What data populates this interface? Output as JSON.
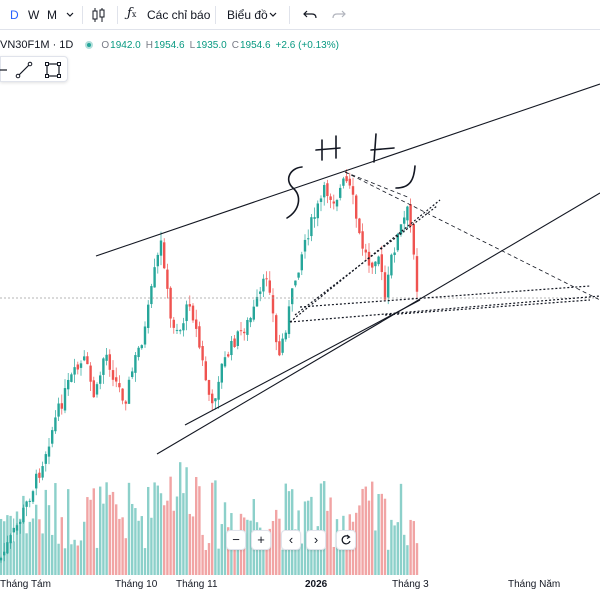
{
  "toolbar": {
    "timeframes": [
      "D",
      "W",
      "M"
    ],
    "active_timeframe": "D",
    "indicators_label": "Các chỉ báo",
    "layout_label": "Biểu đồ"
  },
  "legend": {
    "symbol": "VN30F1M · 1D",
    "open_label": "O",
    "open": "1942.0",
    "high_label": "H",
    "high": "1954.6",
    "low_label": "L",
    "low": "1935.0",
    "close_label": "C",
    "close": "1954.6",
    "change": "+2.6 (+0.13%)"
  },
  "colors": {
    "up": "#26a69a",
    "down": "#ef5350",
    "accent": "#2962ff"
  },
  "icons": [
    "chevron-down-icon",
    "candlestick-icon",
    "fx-icon",
    "undo-icon",
    "redo-icon",
    "pencil-icon",
    "trendline-icon",
    "rectangle-icon",
    "minus-icon",
    "plus-icon",
    "chevron-left-icon",
    "chevron-right-icon",
    "reset-icon"
  ],
  "x_axis": {
    "labels": [
      "Tháng Tám",
      "Tháng 10",
      "Tháng 11",
      "2026",
      "Tháng 3",
      "Tháng Năm"
    ]
  }
}
